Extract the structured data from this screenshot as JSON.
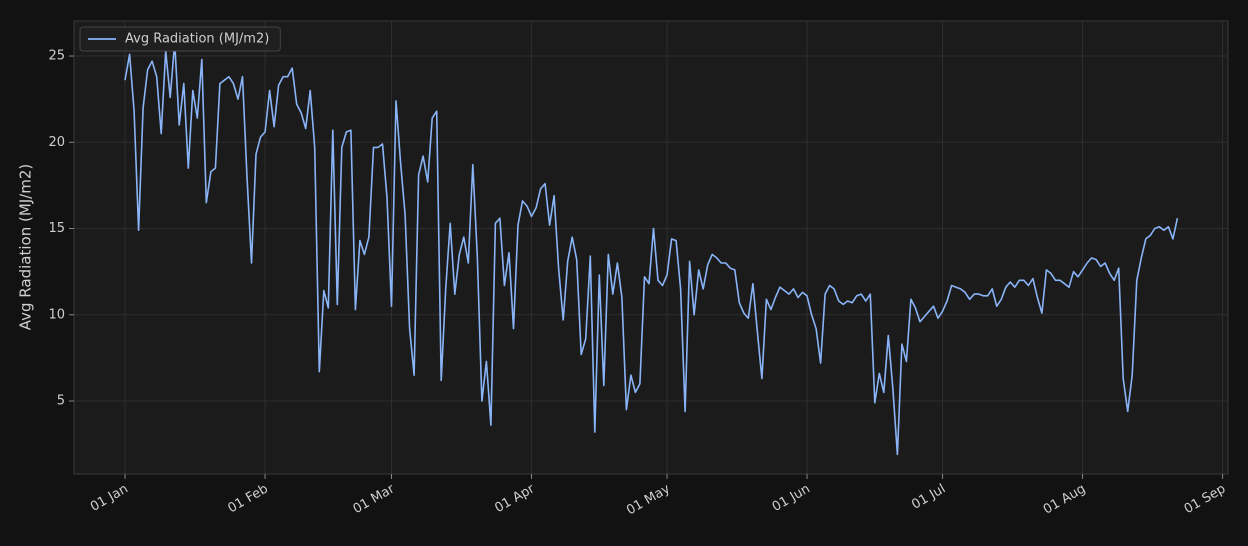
{
  "chart_data": {
    "type": "line",
    "ylabel": "Avg Radiation (MJ/m2)",
    "x": [
      0,
      1,
      2,
      3,
      4,
      5,
      6,
      7,
      8,
      9,
      10,
      11,
      12,
      13,
      14,
      15,
      16,
      17,
      18,
      19,
      20,
      21,
      22,
      23,
      24,
      25,
      26,
      27,
      28,
      29,
      30,
      31,
      32,
      33,
      34,
      35,
      36,
      37,
      38,
      39,
      40,
      41,
      42,
      43,
      44,
      45,
      46,
      47,
      48,
      49,
      50,
      51,
      52,
      53,
      54,
      55,
      56,
      57,
      58,
      59,
      60,
      61,
      62,
      63,
      64,
      65,
      66,
      67,
      68,
      69,
      70,
      71,
      72,
      73,
      74,
      75,
      76,
      77,
      78,
      79,
      80,
      81,
      82,
      83,
      84,
      85,
      86,
      87,
      88,
      89,
      90,
      91,
      92,
      93,
      94,
      95,
      96,
      97,
      98,
      99,
      100,
      101,
      102,
      103,
      104,
      105,
      106,
      107,
      108,
      109,
      110,
      111,
      112,
      113,
      114,
      115,
      116,
      117,
      118,
      119,
      120,
      121,
      122,
      123,
      124,
      125,
      126,
      127,
      128,
      129,
      130,
      131,
      132,
      133,
      134,
      135,
      136,
      137,
      138,
      139,
      140,
      141,
      142,
      143,
      144,
      145,
      146,
      147,
      148,
      149,
      150,
      151,
      152,
      153,
      154,
      155,
      156,
      157,
      158,
      159,
      160,
      161,
      162,
      163,
      164,
      165,
      166,
      167,
      168,
      169,
      170,
      171,
      172,
      173,
      174,
      175,
      176,
      177,
      178,
      179,
      180,
      181,
      182,
      183,
      184,
      185,
      186,
      187,
      188,
      189,
      190,
      191,
      192,
      193,
      194,
      195,
      196,
      197,
      198,
      199,
      200,
      201,
      202,
      203,
      204,
      205,
      206,
      207,
      208,
      209,
      210,
      211,
      212,
      213,
      214,
      215,
      216,
      217,
      218,
      219,
      220,
      221,
      222,
      223,
      224,
      225,
      226,
      227,
      228,
      229,
      230,
      231,
      232,
      233
    ],
    "series": [
      {
        "name": "Avg Radiation (MJ/m2)",
        "color": "#8ab4f8",
        "values": [
          23.6,
          25.1,
          21.8,
          14.9,
          22,
          24.2,
          24.7,
          23.8,
          20.5,
          25.3,
          22.6,
          25.8,
          21,
          23.4,
          18.5,
          23,
          21.4,
          24.8,
          16.5,
          18.3,
          18.5,
          23.4,
          23.6,
          23.8,
          23.4,
          22.5,
          23.8,
          18,
          13,
          19.3,
          20.3,
          20.6,
          23,
          20.9,
          23.3,
          23.8,
          23.8,
          24.3,
          22.2,
          21.7,
          20.8,
          23,
          19.7,
          6.7,
          11.4,
          10.4,
          20.7,
          10.6,
          19.7,
          20.6,
          20.7,
          10.3,
          14.3,
          13.5,
          14.5,
          19.7,
          19.7,
          19.9,
          16.8,
          10.5,
          22.4,
          18.8,
          15.8,
          9.2,
          6.5,
          18.1,
          19.2,
          17.7,
          21.4,
          21.8,
          6.2,
          11.5,
          15.3,
          11.2,
          13.5,
          14.5,
          13,
          18.7,
          13.4,
          5,
          7.3,
          3.6,
          15.3,
          15.6,
          11.7,
          13.6,
          9.2,
          15.2,
          16.6,
          16.3,
          15.7,
          16.2,
          17.3,
          17.6,
          15.2,
          16.9,
          12.7,
          9.7,
          13.1,
          14.5,
          13.2,
          7.7,
          8.6,
          13.4,
          3.2,
          12.3,
          5.9,
          13.5,
          11.2,
          13,
          11,
          4.5,
          6.5,
          5.5,
          6,
          12.2,
          11.8,
          15,
          12,
          11.7,
          12.3,
          14.4,
          14.3,
          11.5,
          4.4,
          13.1,
          10,
          12.6,
          11.5,
          12.9,
          13.5,
          13.3,
          13,
          13,
          12.7,
          12.6,
          10.7,
          10.1,
          9.8,
          11.8,
          9,
          6.3,
          10.9,
          10.3,
          11,
          11.6,
          11.4,
          11.2,
          11.5,
          11,
          11.3,
          11.1,
          10,
          9.2,
          7.2,
          11.2,
          11.7,
          11.5,
          10.8,
          10.6,
          10.8,
          10.7,
          11.1,
          11.2,
          10.8,
          11.2,
          4.9,
          6.6,
          5.5,
          8.8,
          5.7,
          1.9,
          8.3,
          7.3,
          10.9,
          10.4,
          9.6,
          9.9,
          10.2,
          10.5,
          9.8,
          10.2,
          10.8,
          11.7,
          11.6,
          11.5,
          11.3,
          10.9,
          11.2,
          11.2,
          11.1,
          11.1,
          11.5,
          10.5,
          10.9,
          11.6,
          11.9,
          11.6,
          12,
          12,
          11.7,
          12.1,
          11,
          10.1,
          12.6,
          12.4,
          12,
          12,
          11.8,
          11.6,
          12.5,
          12.2,
          12.6,
          13,
          13.3,
          13.2,
          12.8,
          13,
          12.4,
          12,
          12.7,
          6.3,
          4.4,
          6.5,
          12,
          13.3,
          14.4,
          14.6,
          15,
          15.1,
          14.9,
          15.1,
          14.4,
          15.6
        ]
      }
    ],
    "xlim": [
      -11.3,
      244.2
    ],
    "xticks": [
      {
        "value": 0,
        "label": "01 Jan"
      },
      {
        "value": 31,
        "label": "01 Feb"
      },
      {
        "value": 59,
        "label": "01 Mar"
      },
      {
        "value": 90,
        "label": "01 Apr"
      },
      {
        "value": 120,
        "label": "01 May"
      },
      {
        "value": 151,
        "label": "01 Jun"
      },
      {
        "value": 181,
        "label": "01 Jul"
      },
      {
        "value": 212,
        "label": "01 Aug"
      },
      {
        "value": 243,
        "label": "01 Sep"
      }
    ],
    "ylim": [
      0.77,
      27.03
    ],
    "yticks": [
      5,
      10,
      15,
      20,
      25
    ],
    "grid": true,
    "legend": "upper left"
  }
}
